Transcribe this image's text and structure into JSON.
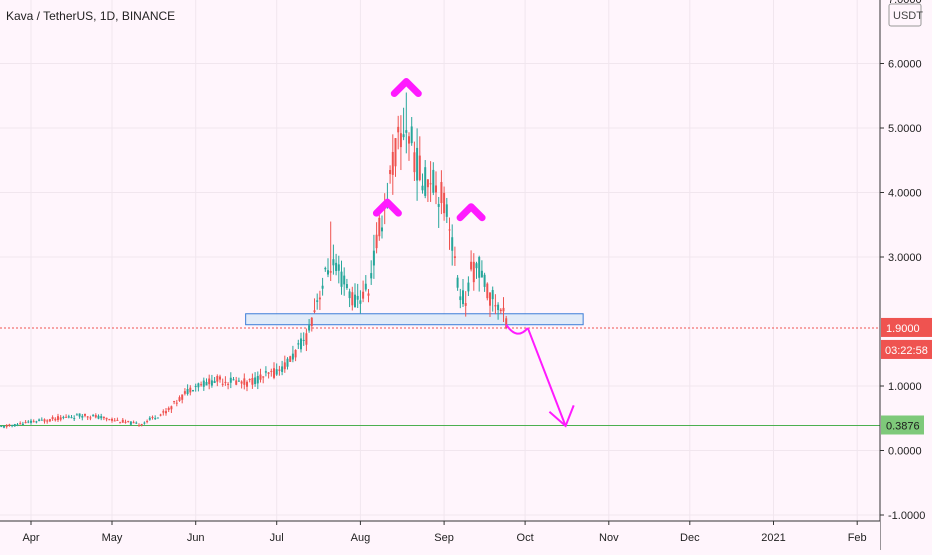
{
  "header": {
    "title": "Kava / TetherUS, 1D, BINANCE"
  },
  "chart_data": {
    "type": "candlestick",
    "price_axis": {
      "unit_label": "USDT",
      "ticks": [
        {
          "value": 7,
          "label": "7.0000"
        },
        {
          "value": 6,
          "label": "6.0000"
        },
        {
          "value": 5,
          "label": "5.0000"
        },
        {
          "value": 4,
          "label": "4.0000"
        },
        {
          "value": 3,
          "label": "3.0000"
        },
        {
          "value": 1,
          "label": "1.0000"
        },
        {
          "value": 0,
          "label": "0.0000"
        },
        {
          "value": -1,
          "label": "-1.0000"
        }
      ],
      "ylim": [
        -1.05,
        7.15
      ]
    },
    "time_axis": {
      "ticks": [
        {
          "day": 0,
          "label": "Apr"
        },
        {
          "day": 30,
          "label": "May"
        },
        {
          "day": 61,
          "label": "Jun"
        },
        {
          "day": 91,
          "label": "Jul"
        },
        {
          "day": 122,
          "label": "Aug"
        },
        {
          "day": 153,
          "label": "Sep"
        },
        {
          "day": 183,
          "label": "Oct"
        },
        {
          "day": 214,
          "label": "Nov"
        },
        {
          "day": 244,
          "label": "Dec"
        },
        {
          "day": 275,
          "label": "2021"
        },
        {
          "day": 306,
          "label": "Feb"
        }
      ],
      "xlim": [
        -10.5,
        314
      ]
    },
    "price_labels": {
      "last_price": "1.9000",
      "countdown": "03:22:58",
      "target": "0.3876"
    },
    "levels": {
      "last_price": 1.9,
      "target": 0.3876,
      "support_zone": [
        1.95,
        2.12
      ]
    },
    "support_zone_days": [
      -18.5,
      -10.5
    ],
    "annotations": [
      {
        "kind": "peak-marker",
        "label": "left shoulder",
        "day": 132,
        "price": 3.85
      },
      {
        "kind": "peak-marker",
        "label": "head",
        "day": 139,
        "price": 5.72
      },
      {
        "kind": "peak-marker",
        "label": "right shoulder",
        "day": 163,
        "price": 3.78
      }
    ],
    "colors": {
      "up": "#26a69a",
      "down": "#ef5350",
      "annotation": "#ff1aff",
      "zone_fill": "#dce9f7",
      "zone_stroke": "#3b7dd8",
      "target_line": "#4caf50",
      "target_badge": "#7ec97a",
      "last_price_badge": "#ef5350",
      "grid": "#f1e6ee"
    },
    "candles": []
  }
}
